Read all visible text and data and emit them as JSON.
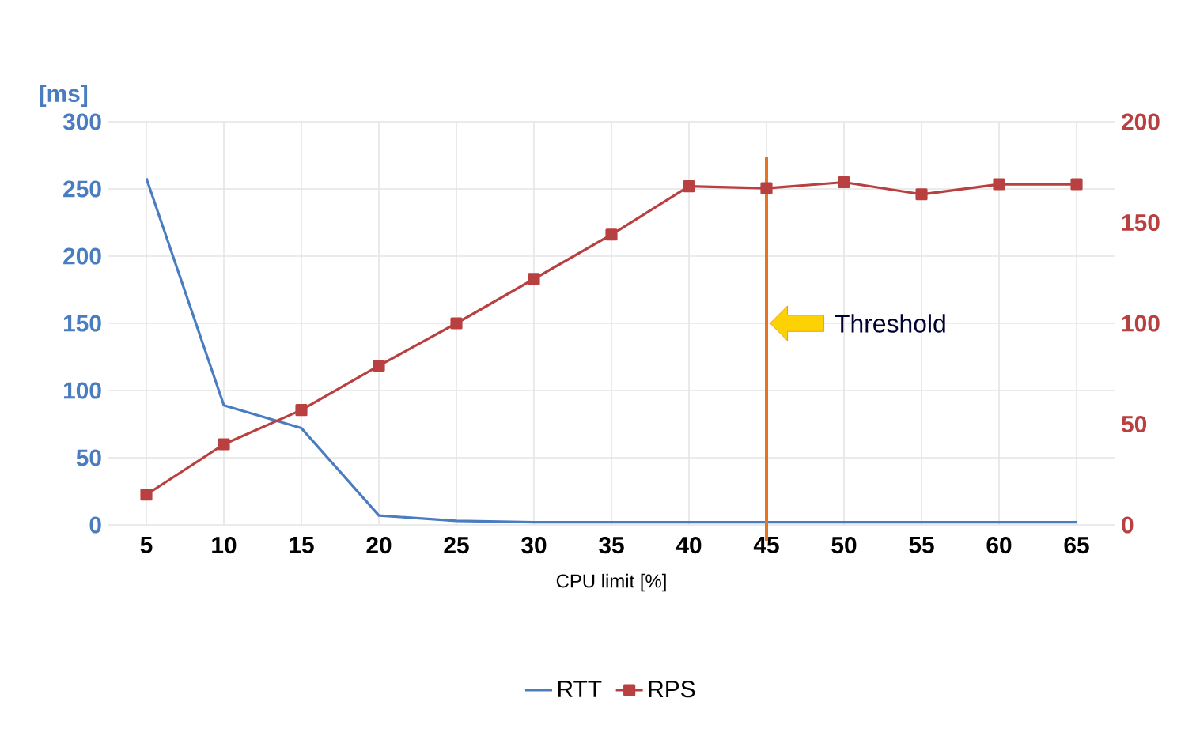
{
  "chart_data": {
    "type": "line",
    "xlabel": "CPU limit [%]",
    "ylabel": "[ms]",
    "categories": [
      "5",
      "10",
      "15",
      "20",
      "25",
      "30",
      "35",
      "40",
      "45",
      "50",
      "55",
      "60",
      "65"
    ],
    "series": [
      {
        "name": "RTT",
        "color": "#4a7cc0",
        "marker": "none",
        "values": [
          258,
          89,
          72,
          7,
          3,
          2,
          2,
          2,
          2,
          2,
          2,
          2,
          2
        ]
      },
      {
        "name": "RPS",
        "color": "#b84040",
        "marker": "square",
        "axis": "y2",
        "values": [
          15,
          40,
          57,
          79,
          100,
          122,
          144,
          168,
          167,
          170,
          164,
          169,
          169
        ]
      }
    ],
    "ylim": [
      0,
      300
    ],
    "yticks": [
      0,
      50,
      100,
      150,
      200,
      250,
      300
    ],
    "y2lim": [
      0,
      200
    ],
    "y2ticks": [
      0,
      50,
      100,
      150,
      200
    ],
    "ref_lines": [
      {
        "axis": "x",
        "value": "45",
        "label": "Threshold",
        "color": "#e8731e"
      }
    ],
    "grid": true,
    "legend": "bottom"
  }
}
